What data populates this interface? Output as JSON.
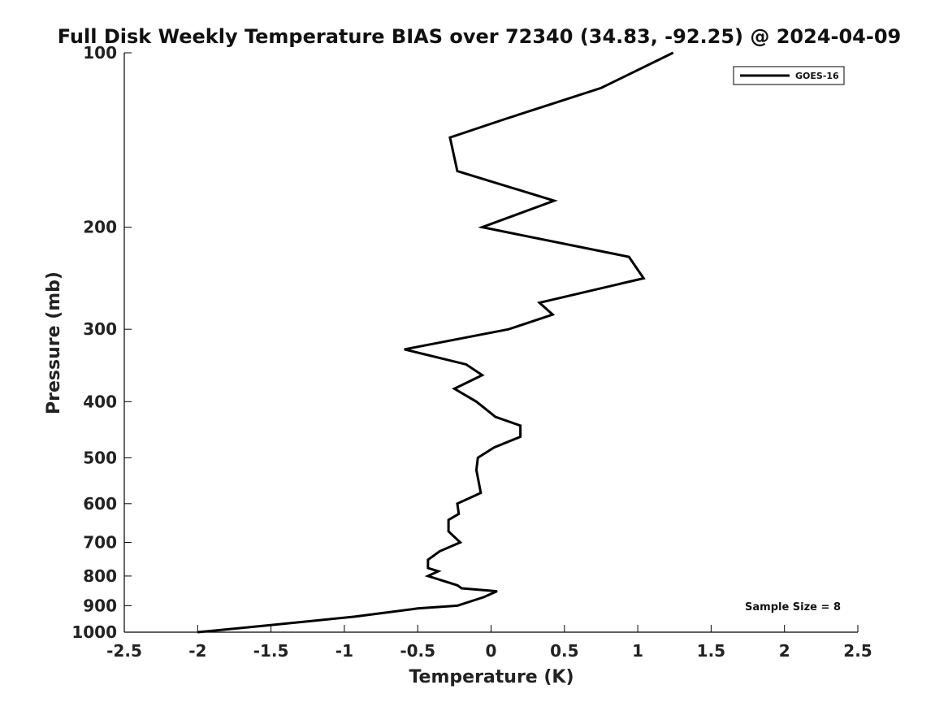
{
  "chart_data": {
    "type": "line",
    "title": "Full Disk Weekly Temperature BIAS over 72340 (34.83, -92.25) @ 2024-04-09",
    "xlabel": "Temperature (K)",
    "ylabel": "Pressure (mb)",
    "xlim": [
      -2.5,
      2.5
    ],
    "ylim": [
      1000,
      100
    ],
    "y_scale": "log",
    "y_reversed": true,
    "x_ticks": [
      "-2.5",
      "-2",
      "-1.5",
      "-1",
      "-0.5",
      "0",
      "0.5",
      "1",
      "1.5",
      "2",
      "2.5"
    ],
    "y_ticks": [
      "100",
      "200",
      "300",
      "400",
      "500",
      "600",
      "700",
      "800",
      "900",
      "1000"
    ],
    "grid": false,
    "legend_position": "top-right",
    "annotation": "Sample Size = 8",
    "series": [
      {
        "name": "GOES-16",
        "color": "#000000",
        "points": [
          {
            "p": 100,
            "t": 1.24
          },
          {
            "p": 115,
            "t": 0.75
          },
          {
            "p": 130,
            "t": 0.1
          },
          {
            "p": 140,
            "t": -0.28
          },
          {
            "p": 160,
            "t": -0.23
          },
          {
            "p": 180,
            "t": 0.43
          },
          {
            "p": 200,
            "t": -0.06
          },
          {
            "p": 225,
            "t": 0.94
          },
          {
            "p": 245,
            "t": 1.04
          },
          {
            "p": 270,
            "t": 0.33
          },
          {
            "p": 283,
            "t": 0.42
          },
          {
            "p": 300,
            "t": 0.12
          },
          {
            "p": 325,
            "t": -0.59
          },
          {
            "p": 345,
            "t": -0.17
          },
          {
            "p": 360,
            "t": -0.06
          },
          {
            "p": 380,
            "t": -0.25
          },
          {
            "p": 400,
            "t": -0.1
          },
          {
            "p": 425,
            "t": 0.03
          },
          {
            "p": 440,
            "t": 0.2
          },
          {
            "p": 460,
            "t": 0.2
          },
          {
            "p": 480,
            "t": 0.02
          },
          {
            "p": 500,
            "t": -0.09
          },
          {
            "p": 525,
            "t": -0.1
          },
          {
            "p": 575,
            "t": -0.07
          },
          {
            "p": 600,
            "t": -0.23
          },
          {
            "p": 625,
            "t": -0.22
          },
          {
            "p": 640,
            "t": -0.29
          },
          {
            "p": 670,
            "t": -0.29
          },
          {
            "p": 700,
            "t": -0.21
          },
          {
            "p": 725,
            "t": -0.35
          },
          {
            "p": 750,
            "t": -0.43
          },
          {
            "p": 775,
            "t": -0.43
          },
          {
            "p": 785,
            "t": -0.36
          },
          {
            "p": 800,
            "t": -0.43
          },
          {
            "p": 830,
            "t": -0.23
          },
          {
            "p": 840,
            "t": -0.2
          },
          {
            "p": 850,
            "t": 0.04
          },
          {
            "p": 870,
            "t": -0.05
          },
          {
            "p": 900,
            "t": -0.23
          },
          {
            "p": 910,
            "t": -0.5
          },
          {
            "p": 940,
            "t": -0.93
          },
          {
            "p": 975,
            "t": -1.55
          },
          {
            "p": 1000,
            "t": -2.0
          }
        ]
      }
    ]
  }
}
